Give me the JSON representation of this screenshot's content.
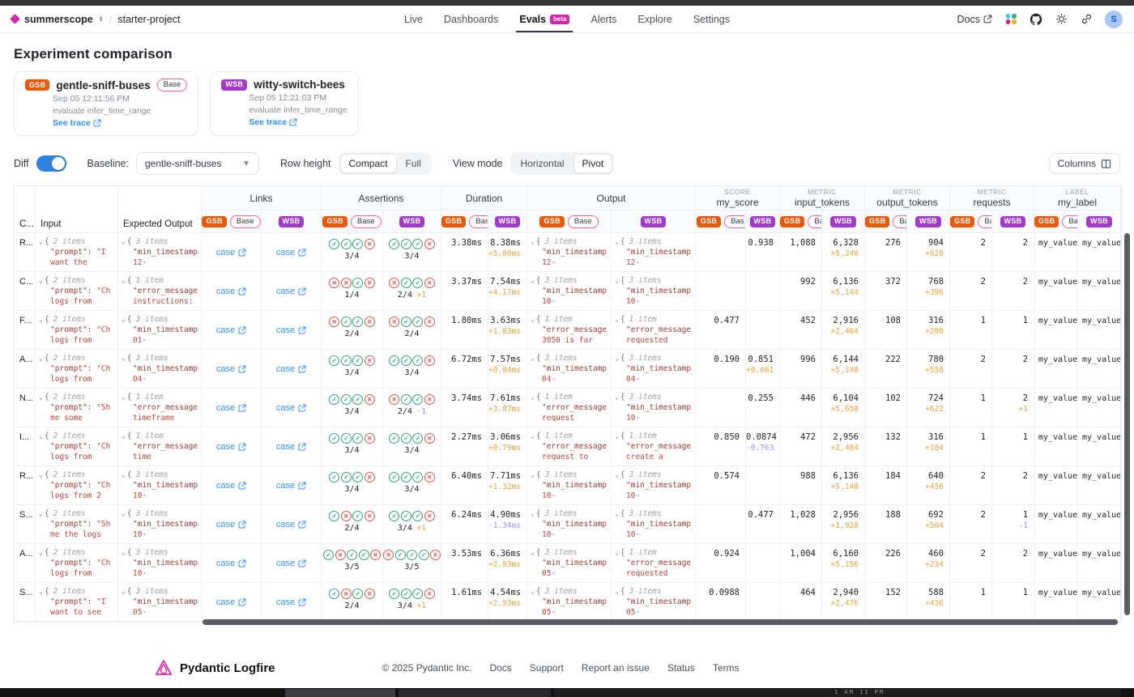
{
  "topbar": {
    "org": "summerscope",
    "project": "starter-project",
    "tabs": [
      {
        "label": "Live"
      },
      {
        "label": "Dashboards"
      },
      {
        "label": "Evals",
        "badge": "beta"
      },
      {
        "label": "Alerts"
      },
      {
        "label": "Explore"
      },
      {
        "label": "Settings"
      }
    ],
    "docs_label": "Docs",
    "avatar_initial": "S"
  },
  "page_title": "Experiment comparison",
  "experiments": [
    {
      "abbr": "GSB",
      "name": "gentle-sniff-buses",
      "base_label": "Base",
      "timestamp": "Sep 05 12:11:56 PM",
      "task": "evaluate infer_time_range",
      "trace_label": "See trace",
      "color": "#e8590c"
    },
    {
      "abbr": "WSB",
      "name": "witty-switch-bees",
      "base_label": "",
      "timestamp": "Sep 05 12:21:03 PM",
      "task": "evaluate infer_time_range",
      "trace_label": "See trace",
      "color": "#a23bc9"
    }
  ],
  "controls": {
    "diff_label": "Diff",
    "baseline_label": "Baseline:",
    "baseline_value": "gentle-sniff-buses",
    "row_height_label": "Row height",
    "row_height_options": [
      "Compact",
      "Full"
    ],
    "row_height_selected": "Compact",
    "view_mode_label": "View mode",
    "view_mode_options": [
      "Horizontal",
      "Pivot"
    ],
    "view_mode_selected": "Pivot",
    "columns_button": "Columns"
  },
  "table": {
    "col_case": "C...",
    "col_input": "Input",
    "col_expected": "Expected Output",
    "badge_gsb": "GSB",
    "badge_wsb": "WSB",
    "base_pill": "Base",
    "link_label": "case",
    "groups": [
      {
        "id": "links",
        "label": "Links",
        "kicker": ""
      },
      {
        "id": "assertions",
        "label": "Assertions",
        "kicker": ""
      },
      {
        "id": "duration",
        "label": "Duration",
        "kicker": ""
      },
      {
        "id": "output",
        "label": "Output",
        "kicker": ""
      },
      {
        "id": "my_score",
        "label": "my_score",
        "kicker": "SCORE"
      },
      {
        "id": "input_tokens",
        "label": "input_tokens",
        "kicker": "METRIC"
      },
      {
        "id": "output_tokens",
        "label": "output_tokens",
        "kicker": "METRIC"
      },
      {
        "id": "requests",
        "label": "requests",
        "kicker": "METRIC"
      },
      {
        "id": "my_label",
        "label": "my_label",
        "kicker": "LABEL"
      }
    ],
    "rows": [
      {
        "case": "R...",
        "input": {
          "count": "2 items",
          "key": "\"prompt\":",
          "frag": "\"I",
          "val": "want the"
        },
        "expected": {
          "count": "3 items",
          "key": "\"min_timestamp",
          "val": "12-"
        },
        "assert_gsb": {
          "icons": "PPPF",
          "score": "3/4",
          "diff": ""
        },
        "assert_wsb": {
          "icons": "PPPF",
          "score": "3/4",
          "diff": ""
        },
        "dur_gsb": {
          "v": "3.38ms"
        },
        "dur_wsb": {
          "v": "8.38ms",
          "diff": "+5.00ms"
        },
        "out_gsb": {
          "count": "3 items",
          "key": "\"min_timestamp",
          "val": "12-"
        },
        "out_wsb": {
          "count": "3 items",
          "key": "\"min_timestamp",
          "val": "12-"
        },
        "score_gsb": {},
        "score_wsb": {
          "v": "0.938"
        },
        "itok_gsb": {
          "v": "1,088"
        },
        "itok_wsb": {
          "v": "6,328",
          "diff": "+5,240"
        },
        "otok_gsb": {
          "v": "276"
        },
        "otok_wsb": {
          "v": "904",
          "diff": "+628"
        },
        "req_gsb": {
          "v": "2"
        },
        "req_wsb": {
          "v": "2"
        },
        "label_gsb": "my_value_",
        "label_wsb": "my_value_"
      },
      {
        "case": "C...",
        "input": {
          "count": "2 items",
          "key": "\"prompt\":",
          "frag": "\"Ch",
          "val": "logs from"
        },
        "expected": {
          "count": "1 item",
          "key": "\"error_message",
          "val": "instructions:"
        },
        "assert_gsb": {
          "icons": "FFPF",
          "score": "1/4",
          "diff": ""
        },
        "assert_wsb": {
          "icons": "FPPF",
          "score": "2/4",
          "diff": "+1"
        },
        "dur_gsb": {
          "v": "3.37ms"
        },
        "dur_wsb": {
          "v": "7.54ms",
          "diff": "+4.17ms"
        },
        "out_gsb": {
          "count": "3 items",
          "key": "\"min_timestamp",
          "val": "10-"
        },
        "out_wsb": {
          "count": "3 items",
          "key": "\"min_timestamp",
          "val": "10-"
        },
        "score_gsb": {},
        "score_wsb": {},
        "itok_gsb": {
          "v": "992"
        },
        "itok_wsb": {
          "v": "6,136",
          "diff": "+5,144"
        },
        "otok_gsb": {
          "v": "372"
        },
        "otok_wsb": {
          "v": "768",
          "diff": "+396"
        },
        "req_gsb": {
          "v": "2"
        },
        "req_wsb": {
          "v": "2"
        },
        "label_gsb": "my_value_",
        "label_wsb": "my_value_"
      },
      {
        "case": "F...",
        "input": {
          "count": "2 items",
          "key": "\"prompt\":",
          "frag": "\"Ch",
          "val": "logs from"
        },
        "expected": {
          "count": "3 items",
          "key": "\"min_timestamp",
          "val": "01-"
        },
        "assert_gsb": {
          "icons": "FPPF",
          "score": "2/4",
          "diff": ""
        },
        "assert_wsb": {
          "icons": "FPPF",
          "score": "2/4",
          "diff": ""
        },
        "dur_gsb": {
          "v": "1.80ms"
        },
        "dur_wsb": {
          "v": "3.63ms",
          "diff": "+1.83ms"
        },
        "out_gsb": {
          "count": "1 item",
          "key": "\"error_message",
          "val": "3050 is far"
        },
        "out_wsb": {
          "count": "1 item",
          "key": "\"error_message",
          "val": "requested"
        },
        "score_gsb": {
          "v": "0.477"
        },
        "score_wsb": {},
        "itok_gsb": {
          "v": "452"
        },
        "itok_wsb": {
          "v": "2,916",
          "diff": "+2,464"
        },
        "otok_gsb": {
          "v": "108"
        },
        "otok_wsb": {
          "v": "316",
          "diff": "+208"
        },
        "req_gsb": {
          "v": "1"
        },
        "req_wsb": {
          "v": "1"
        },
        "label_gsb": "my_value_",
        "label_wsb": "my_value_"
      },
      {
        "case": "A...",
        "input": {
          "count": "2 items",
          "key": "\"prompt\":",
          "frag": "\"Ch",
          "val": "logs from"
        },
        "expected": {
          "count": "3 items",
          "key": "\"min_timestamp",
          "val": "04-"
        },
        "assert_gsb": {
          "icons": "PPPF",
          "score": "3/4",
          "diff": ""
        },
        "assert_wsb": {
          "icons": "PPPF",
          "score": "3/4",
          "diff": ""
        },
        "dur_gsb": {
          "v": "6.72ms"
        },
        "dur_wsb": {
          "v": "7.57ms",
          "diff": "+0.84ms"
        },
        "out_gsb": {
          "count": "3 items",
          "key": "\"min_timestamp",
          "val": "04-"
        },
        "out_wsb": {
          "count": "3 items",
          "key": "\"min_timestamp",
          "val": "04-"
        },
        "score_gsb": {
          "v": "0.190"
        },
        "score_wsb": {
          "v": "0.851",
          "diff": "+0.661"
        },
        "itok_gsb": {
          "v": "996"
        },
        "itok_wsb": {
          "v": "6,144",
          "diff": "+5,148"
        },
        "otok_gsb": {
          "v": "222"
        },
        "otok_wsb": {
          "v": "780",
          "diff": "+558"
        },
        "req_gsb": {
          "v": "2"
        },
        "req_wsb": {
          "v": "2"
        },
        "label_gsb": "my_value_",
        "label_wsb": "my_value_"
      },
      {
        "case": "N...",
        "input": {
          "count": "2 items",
          "key": "\"prompt\":",
          "frag": "\"Sh",
          "val": "me some"
        },
        "expected": {
          "count": "1 item",
          "key": "\"error_message",
          "val": "timeframe"
        },
        "assert_gsb": {
          "icons": "PPPF",
          "score": "3/4",
          "diff": ""
        },
        "assert_wsb": {
          "icons": "FPPF",
          "score": "2/4",
          "diff": "-1"
        },
        "dur_gsb": {
          "v": "3.74ms"
        },
        "dur_wsb": {
          "v": "7.61ms",
          "diff": "+3.87ms"
        },
        "out_gsb": {
          "count": "1 item",
          "key": "\"error_message",
          "val": "request"
        },
        "out_wsb": {
          "count": "3 items",
          "key": "\"min_timestamp",
          "val": "10-"
        },
        "score_gsb": {},
        "score_wsb": {
          "v": "0.255"
        },
        "itok_gsb": {
          "v": "446"
        },
        "itok_wsb": {
          "v": "6,104",
          "diff": "+5,658"
        },
        "otok_gsb": {
          "v": "102"
        },
        "otok_wsb": {
          "v": "724",
          "diff": "+622"
        },
        "req_gsb": {
          "v": "1"
        },
        "req_wsb": {
          "v": "2",
          "diff": "+1"
        },
        "label_gsb": "my_value_",
        "label_wsb": "my_value_"
      },
      {
        "case": "I...",
        "input": {
          "count": "2 items",
          "key": "\"prompt\":",
          "frag": "\"Ch",
          "val": "logs from"
        },
        "expected": {
          "count": "1 item",
          "key": "\"error_message",
          "val": "time"
        },
        "assert_gsb": {
          "icons": "PPPF",
          "score": "3/4",
          "diff": ""
        },
        "assert_wsb": {
          "icons": "PPPF",
          "score": "3/4",
          "diff": ""
        },
        "dur_gsb": {
          "v": "2.27ms"
        },
        "dur_wsb": {
          "v": "3.06ms",
          "diff": "+0.79ms"
        },
        "out_gsb": {
          "count": "1 item",
          "key": "\"error_message",
          "val": "request to"
        },
        "out_wsb": {
          "count": "1 item",
          "key": "\"error_message",
          "val": "create a"
        },
        "score_gsb": {
          "v": "0.850"
        },
        "score_wsb": {
          "v": "0.0874",
          "diff": "-0.763"
        },
        "itok_gsb": {
          "v": "472"
        },
        "itok_wsb": {
          "v": "2,956",
          "diff": "+2,484"
        },
        "otok_gsb": {
          "v": "132"
        },
        "otok_wsb": {
          "v": "316",
          "diff": "+184"
        },
        "req_gsb": {
          "v": "1"
        },
        "req_wsb": {
          "v": "1"
        },
        "label_gsb": "my_value_",
        "label_wsb": "my_value_"
      },
      {
        "case": "R...",
        "input": {
          "count": "2 items",
          "key": "\"prompt\":",
          "frag": "\"Ch",
          "val": "logs from 2"
        },
        "expected": {
          "count": "3 items",
          "key": "\"min_timestamp",
          "val": "10-"
        },
        "assert_gsb": {
          "icons": "PPPF",
          "score": "3/4",
          "diff": ""
        },
        "assert_wsb": {
          "icons": "PPPF",
          "score": "3/4",
          "diff": ""
        },
        "dur_gsb": {
          "v": "6.40ms"
        },
        "dur_wsb": {
          "v": "7.71ms",
          "diff": "+1.32ms"
        },
        "out_gsb": {
          "count": "3 items",
          "key": "\"min_timestamp",
          "val": "10-"
        },
        "out_wsb": {
          "count": "3 items",
          "key": "\"min_timestamp",
          "val": "10-"
        },
        "score_gsb": {
          "v": "0.574"
        },
        "score_wsb": {},
        "itok_gsb": {
          "v": "988"
        },
        "itok_wsb": {
          "v": "6,136",
          "diff": "+5,148"
        },
        "otok_gsb": {
          "v": "184"
        },
        "otok_wsb": {
          "v": "640",
          "diff": "+456"
        },
        "req_gsb": {
          "v": "2"
        },
        "req_wsb": {
          "v": "2"
        },
        "label_gsb": "my_value_",
        "label_wsb": "my_value_"
      },
      {
        "case": "S...",
        "input": {
          "count": "2 items",
          "key": "\"prompt\":",
          "frag": "\"Sh",
          "val": "me the logs"
        },
        "expected": {
          "count": "3 items",
          "key": "\"min_timestamp",
          "val": "10-"
        },
        "assert_gsb": {
          "icons": "PFPF",
          "score": "2/4",
          "diff": ""
        },
        "assert_wsb": {
          "icons": "PPPF",
          "score": "3/4",
          "diff": "+1"
        },
        "dur_gsb": {
          "v": "6.24ms"
        },
        "dur_wsb": {
          "v": "4.90ms",
          "diff": "-1.34ms"
        },
        "out_gsb": {
          "count": "3 items",
          "key": "\"min_timestamp",
          "val": "10-"
        },
        "out_wsb": {
          "count": "3 items",
          "key": "\"min_timestamp",
          "val": "10-"
        },
        "score_gsb": {},
        "score_wsb": {
          "v": "0.477"
        },
        "itok_gsb": {
          "v": "1,028"
        },
        "itok_wsb": {
          "v": "2,956",
          "diff": "+1,928"
        },
        "otok_gsb": {
          "v": "188"
        },
        "otok_wsb": {
          "v": "692",
          "diff": "+504"
        },
        "req_gsb": {
          "v": "2"
        },
        "req_wsb": {
          "v": "1",
          "diff": "-1"
        },
        "label_gsb": "my_value_",
        "label_wsb": "my_value_"
      },
      {
        "case": "A...",
        "input": {
          "count": "2 items",
          "key": "\"prompt\":",
          "frag": "\"Ch",
          "val": "logs from"
        },
        "expected": {
          "count": "3 items",
          "key": "\"min_timestamp",
          "val": "10-"
        },
        "assert_gsb": {
          "icons": "PFPPF",
          "score": "3/5",
          "diff": ""
        },
        "assert_wsb": {
          "icons": "FPPPF",
          "score": "3/5",
          "diff": ""
        },
        "dur_gsb": {
          "v": "3.53ms"
        },
        "dur_wsb": {
          "v": "6.36ms",
          "diff": "+2.83ms"
        },
        "out_gsb": {
          "count": "3 items",
          "key": "\"min_timestamp",
          "val": "05-"
        },
        "out_wsb": {
          "count": "1 item",
          "key": "\"error_message",
          "val": "requested"
        },
        "score_gsb": {
          "v": "0.924"
        },
        "score_wsb": {},
        "itok_gsb": {
          "v": "1,004"
        },
        "itok_wsb": {
          "v": "6,160",
          "diff": "+5,156"
        },
        "otok_gsb": {
          "v": "226"
        },
        "otok_wsb": {
          "v": "460",
          "diff": "+234"
        },
        "req_gsb": {
          "v": "2"
        },
        "req_wsb": {
          "v": "2"
        },
        "label_gsb": "my_value_",
        "label_wsb": "my_value_"
      },
      {
        "case": "S...",
        "input": {
          "count": "2 items",
          "key": "\"prompt\":",
          "frag": "\"I",
          "val": "want to see"
        },
        "expected": {
          "count": "3 items",
          "key": "\"min_timestamp",
          "val": "05-"
        },
        "assert_gsb": {
          "icons": "PFPF",
          "score": "2/4",
          "diff": ""
        },
        "assert_wsb": {
          "icons": "PPPF",
          "score": "3/4",
          "diff": "+1"
        },
        "dur_gsb": {
          "v": "1.61ms"
        },
        "dur_wsb": {
          "v": "4.54ms",
          "diff": "+2.93ms"
        },
        "out_gsb": {
          "count": "3 items",
          "key": "\"min_timestamp",
          "val": "05-"
        },
        "out_wsb": {
          "count": "3 items",
          "key": "\"min_timestamp",
          "val": "05-"
        },
        "score_gsb": {
          "v": "0.0988"
        },
        "score_wsb": {},
        "itok_gsb": {
          "v": "464"
        },
        "itok_wsb": {
          "v": "2,940",
          "diff": "+2,476"
        },
        "otok_gsb": {
          "v": "152"
        },
        "otok_wsb": {
          "v": "588",
          "diff": "+436"
        },
        "req_gsb": {
          "v": "1"
        },
        "req_wsb": {
          "v": "1"
        },
        "label_gsb": "my_value_",
        "label_wsb": "my_value_"
      }
    ]
  },
  "footer": {
    "brand": "Pydantic Logfire",
    "copyright": "© 2025 Pydantic Inc.",
    "links": [
      "Docs",
      "Support",
      "Report an issue",
      "Status",
      "Terms"
    ]
  },
  "taskbar_times": "1 AM   11 PM"
}
